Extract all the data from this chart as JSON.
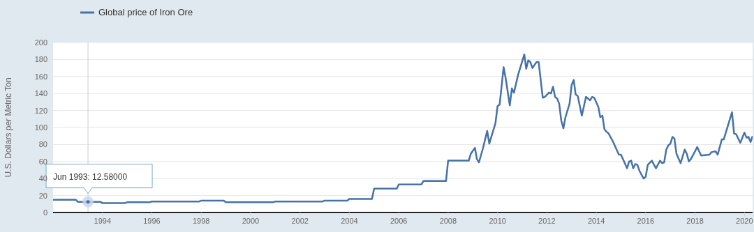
{
  "chart_data": {
    "type": "line",
    "ylabel": "U.S. Dollars per Metric Ton",
    "legend": "top left",
    "grid": "y",
    "marker": "none",
    "line_style": "solid",
    "xlim": [
      "1992-01",
      "2020-05"
    ],
    "ylim": [
      0,
      200
    ],
    "yticks": [
      0,
      20,
      40,
      60,
      80,
      100,
      120,
      140,
      160,
      180,
      200
    ],
    "xticks": [
      "1994",
      "1996",
      "1998",
      "2000",
      "2002",
      "2004",
      "2006",
      "2008",
      "2010",
      "2012",
      "2014",
      "2016",
      "2018",
      "2020"
    ],
    "ref_lines": [
      {
        "axis": "x",
        "value": "1993-06",
        "color": "#cccccc"
      }
    ],
    "annotations": [
      {
        "text": "Jun 1993: 12.58000",
        "x": "1993-06",
        "y": 12.58
      }
    ],
    "series": [
      {
        "name": "Global price of Iron Ore",
        "color": "#4572a7",
        "x": [
          "1992-01",
          "1992-12",
          "1993-01",
          "1993-12",
          "1994-01",
          "1994-12",
          "1995-01",
          "1995-12",
          "1996-01",
          "1996-12",
          "1997-01",
          "1997-12",
          "1998-01",
          "1998-12",
          "1999-01",
          "1999-12",
          "2000-01",
          "2000-12",
          "2001-01",
          "2001-12",
          "2002-01",
          "2002-12",
          "2003-01",
          "2003-12",
          "2004-01",
          "2004-12",
          "2005-01",
          "2005-12",
          "2006-01",
          "2006-12",
          "2007-01",
          "2007-12",
          "2008-01",
          "2008-11",
          "2008-12",
          "2009-02",
          "2009-03",
          "2009-04",
          "2009-06",
          "2009-08",
          "2009-09",
          "2009-12",
          "2010-01",
          "2010-02",
          "2010-04",
          "2010-05",
          "2010-07",
          "2010-08",
          "2010-09",
          "2010-11",
          "2011-02",
          "2011-03",
          "2011-04",
          "2011-05",
          "2011-06",
          "2011-08",
          "2011-09",
          "2011-11",
          "2011-12",
          "2012-02",
          "2012-03",
          "2012-04",
          "2012-05",
          "2012-06",
          "2012-07",
          "2012-08",
          "2012-09",
          "2012-10",
          "2012-12",
          "2013-01",
          "2013-02",
          "2013-03",
          "2013-04",
          "2013-06",
          "2013-08",
          "2013-10",
          "2013-11",
          "2013-12",
          "2014-02",
          "2014-03",
          "2014-04",
          "2014-05",
          "2014-06",
          "2014-07",
          "2014-09",
          "2014-12",
          "2015-01",
          "2015-04",
          "2015-05",
          "2015-06",
          "2015-07",
          "2015-08",
          "2015-09",
          "2015-10",
          "2015-12",
          "2016-01",
          "2016-02",
          "2016-04",
          "2016-06",
          "2016-08",
          "2016-09",
          "2016-10",
          "2016-11",
          "2016-12",
          "2017-01",
          "2017-02",
          "2017-03",
          "2017-04",
          "2017-06",
          "2017-08",
          "2017-09",
          "2017-10",
          "2017-11",
          "2018-01",
          "2018-02",
          "2018-04",
          "2018-08",
          "2018-09",
          "2018-11",
          "2018-12",
          "2019-02",
          "2019-03",
          "2019-07",
          "2019-08",
          "2019-09",
          "2019-11",
          "2020-01",
          "2020-02",
          "2020-03",
          "2020-04",
          "2020-05"
        ],
        "values": [
          15,
          15,
          12.58,
          12.58,
          11,
          11,
          12,
          12,
          13,
          13,
          13,
          13,
          14,
          14,
          12,
          12,
          12,
          12,
          13,
          13,
          13,
          13,
          14,
          14,
          16,
          16,
          28,
          28,
          33,
          33,
          37,
          37,
          61,
          61,
          69,
          76,
          63,
          59,
          76,
          96,
          81,
          105,
          125,
          127,
          171,
          158,
          126,
          146,
          141,
          162,
          186,
          169,
          179,
          177,
          170,
          177,
          177,
          135,
          136,
          141,
          140,
          148,
          136,
          134,
          128,
          108,
          99,
          112,
          128,
          150,
          156,
          139,
          137,
          114,
          136,
          132,
          136,
          135,
          124,
          112,
          114,
          98,
          95,
          93,
          84,
          68,
          68,
          52,
          60,
          61,
          52,
          57,
          56,
          49,
          40,
          42,
          56,
          61,
          52,
          61,
          58,
          59,
          74,
          79,
          81,
          89,
          87,
          69,
          58,
          74,
          69,
          60,
          63,
          72,
          77,
          67,
          68,
          71,
          72,
          68,
          86,
          86,
          118,
          93,
          92,
          82,
          94,
          88,
          89,
          83,
          90
        ]
      }
    ]
  }
}
